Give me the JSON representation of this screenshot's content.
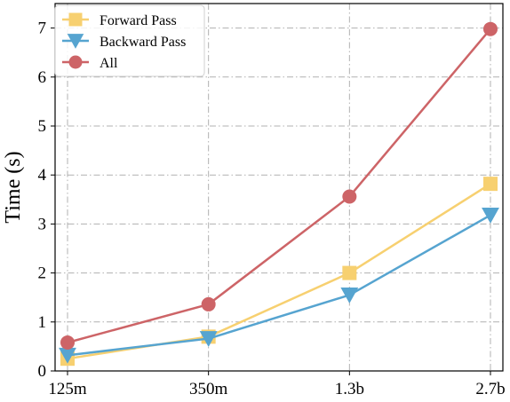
{
  "chart_data": {
    "type": "line",
    "categories": [
      "125m",
      "350m",
      "1.3b",
      "2.7b"
    ],
    "ylabel": "Time (s)",
    "xlabel": "",
    "ylim": [
      0,
      7.5
    ],
    "yticks": [
      "0",
      "1",
      "2",
      "3",
      "4",
      "5",
      "6",
      "7"
    ],
    "grid": true,
    "legend_position": "top-left",
    "series": [
      {
        "name": "Forward Pass",
        "values": [
          0.25,
          0.7,
          2.0,
          3.82
        ],
        "color": "#f7d070",
        "marker": "square"
      },
      {
        "name": "Backward Pass",
        "values": [
          0.32,
          0.66,
          1.55,
          3.18
        ],
        "color": "#56a4d0",
        "marker": "triangle-down"
      },
      {
        "name": "All",
        "values": [
          0.58,
          1.36,
          3.56,
          6.98
        ],
        "color": "#cd6467",
        "marker": "circle"
      }
    ]
  }
}
